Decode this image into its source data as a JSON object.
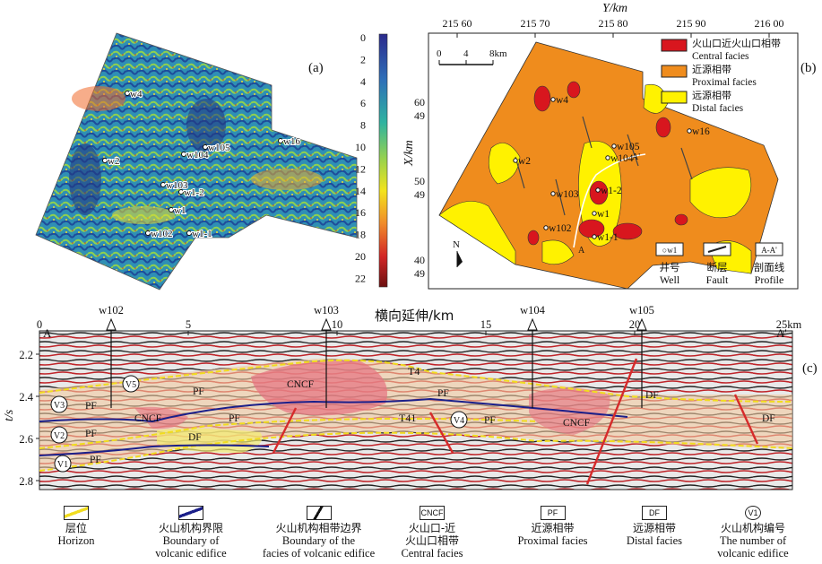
{
  "panel_a": {
    "tag": "(a)",
    "colorbar_ticks": [
      "0",
      "2",
      "4",
      "6",
      "8",
      "10",
      "12",
      "14",
      "16",
      "18",
      "20",
      "22"
    ],
    "wells": [
      "w4",
      "w2",
      "w105",
      "w104",
      "w16",
      "w103",
      "w1-2",
      "w1",
      "w102",
      "w1-1"
    ]
  },
  "panel_b": {
    "tag": "(b)",
    "y_axis_title": "Y/km",
    "y_ticks": [
      "215 60",
      "215 70",
      "215 80",
      "215 90",
      "216 00"
    ],
    "x_axis_title": "X/km",
    "x_ticks": [
      [
        "60",
        "49"
      ],
      [
        "50",
        "49"
      ],
      [
        "40",
        "49"
      ]
    ],
    "scale": [
      "0",
      "4",
      "8km"
    ],
    "north": "N",
    "legend": [
      {
        "cn": "火山口近火山口相带",
        "en": "Central facies",
        "color": "#d8161e"
      },
      {
        "cn": "近源相带",
        "en": "Proximal facies",
        "color": "#ef8c1d"
      },
      {
        "cn": "远源相带",
        "en": "Distal facies",
        "color": "#fff200"
      }
    ],
    "map_legend": [
      {
        "sym": "○w1",
        "cn": "井号",
        "en": "Well"
      },
      {
        "cn": "断层",
        "en": "Fault"
      },
      {
        "sym": "A-A'",
        "cn": "剖面线",
        "en": "Profile"
      }
    ],
    "wells": [
      "w4",
      "w2",
      "w104",
      "w105",
      "w16",
      "w103",
      "w1-2",
      "w1",
      "w102",
      "w1-1"
    ],
    "profile_end_top": "A'",
    "profile_end_bottom": "A"
  },
  "panel_c": {
    "tag": "(c)",
    "x_title": "横向延伸/km",
    "x_ticks": [
      "0",
      "5",
      "10",
      "15",
      "20",
      "25km"
    ],
    "left_end": "A",
    "right_end": "A'",
    "y_title": "t/s",
    "y_ticks": [
      "2.2",
      "2.4",
      "2.6",
      "2.8"
    ],
    "wells": [
      "w102",
      "w103",
      "w104",
      "w105"
    ],
    "horizons": [
      "T4",
      "T41"
    ],
    "facies_labels": [
      "PF",
      "CNCF",
      "DF"
    ],
    "edifices": [
      "V1",
      "V2",
      "V3",
      "V4",
      "V5"
    ]
  },
  "legend": [
    {
      "sym": "",
      "cn": "层位",
      "en": "Horizon",
      "en2": ""
    },
    {
      "sym": "",
      "cn": "火山机构界限",
      "en": "Boundary of",
      "en2": "volcanic edifice"
    },
    {
      "sym": "",
      "cn": "火山机构相带边界",
      "en": "Boundary of the",
      "en2": "facies of volcanic edifice"
    },
    {
      "sym": "CNCF",
      "cn": "火山口-近",
      "en": "火山口相带",
      "en2": "Central facies"
    },
    {
      "sym": "PF",
      "cn": "近源相带",
      "en": "Proximal facies",
      "en2": ""
    },
    {
      "sym": "DF",
      "cn": "远源相带",
      "en": "Distal facies",
      "en2": ""
    },
    {
      "sym": "V1",
      "cn": "火山机构编号",
      "en": "The number of",
      "en2": "volcanic edifice"
    }
  ]
}
